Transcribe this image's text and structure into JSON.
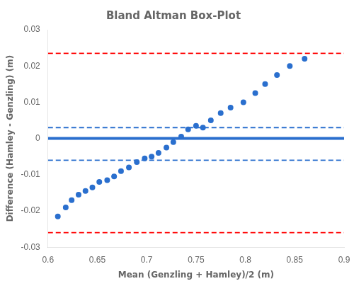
{
  "chart_data": {
    "type": "scatter",
    "title": "Bland Altman Box-Plot",
    "xlabel": "Mean (Genzling + Hamley)/2 (m)",
    "ylabel": "Difference (Hamley - Genzling) (m)",
    "x": [
      0.61,
      0.618,
      0.624,
      0.631,
      0.638,
      0.645,
      0.652,
      0.66,
      0.667,
      0.674,
      0.682,
      0.69,
      0.698,
      0.705,
      0.712,
      0.72,
      0.727,
      0.735,
      0.742,
      0.75,
      0.757,
      0.765,
      0.775,
      0.785,
      0.798,
      0.81,
      0.82,
      0.832,
      0.845,
      0.86
    ],
    "values": [
      -0.0215,
      -0.019,
      -0.017,
      -0.0155,
      -0.0145,
      -0.0135,
      -0.012,
      -0.0115,
      -0.0105,
      -0.009,
      -0.008,
      -0.0065,
      -0.0055,
      -0.005,
      -0.004,
      -0.0025,
      -0.001,
      0.0005,
      0.0025,
      0.0035,
      0.003,
      0.005,
      0.007,
      0.0085,
      0.01,
      0.0125,
      0.015,
      0.0175,
      0.02,
      0.022
    ],
    "color": "#2a6fce",
    "hlines": [
      {
        "y": 0.0,
        "color": "#2a6fce",
        "line_style": "solid"
      },
      {
        "y": 0.003,
        "color": "#2a6fce",
        "line_style": "dashed"
      },
      {
        "y": -0.006,
        "color": "#2a6fce",
        "line_style": "dashed"
      },
      {
        "y": 0.0235,
        "color": "#ff0000",
        "line_style": "dashed"
      },
      {
        "y": -0.026,
        "color": "#ff0000",
        "line_style": "dashed"
      }
    ],
    "xlim": [
      0.6,
      0.9
    ],
    "ylim": [
      -0.03,
      0.03
    ],
    "xticks": [
      0.6,
      0.65,
      0.7,
      0.75,
      0.8,
      0.85,
      0.9
    ],
    "yticks": [
      -0.03,
      -0.02,
      -0.01,
      0.0,
      0.01,
      0.02,
      0.03
    ],
    "grid": false
  }
}
